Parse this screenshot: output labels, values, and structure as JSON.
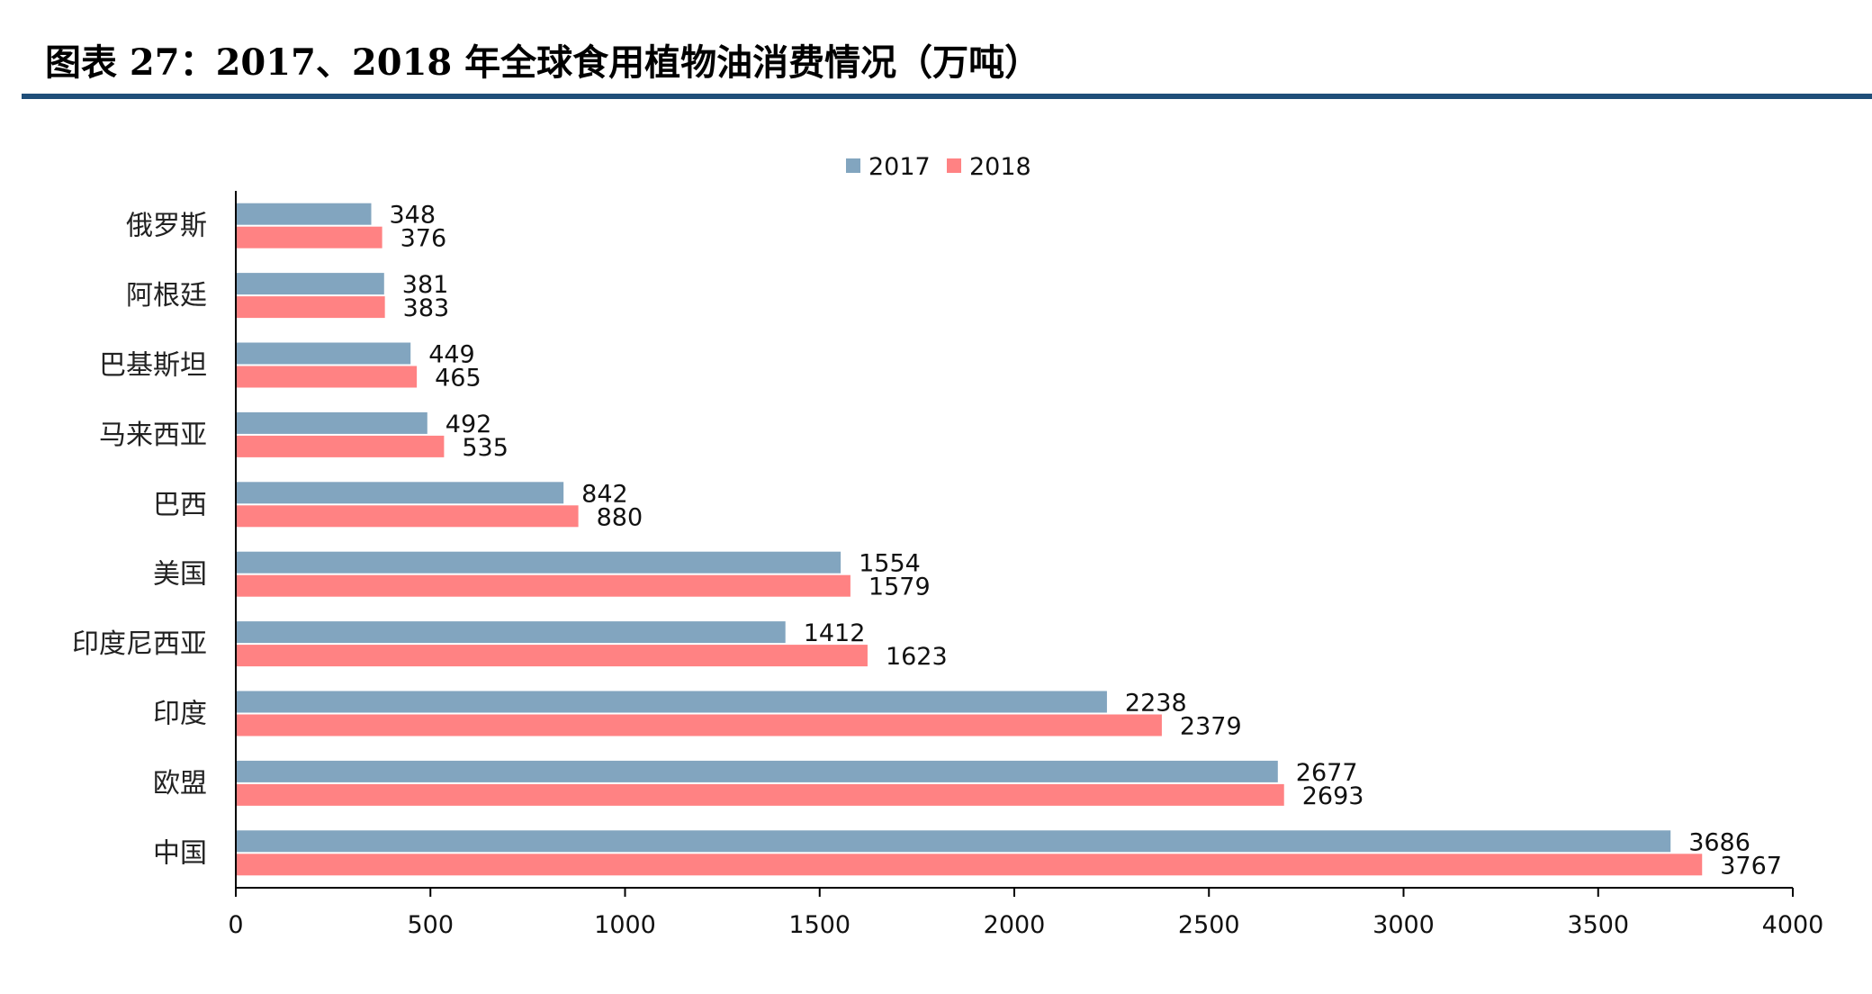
{
  "page": {
    "title": "图表 27：2017、2018 年全球食用植物油消费情况（万吨）"
  },
  "colors": {
    "series_2017": "#82a5bf",
    "series_2018": "#ff8283",
    "title_rule": "#1f4e79"
  },
  "chart_data": {
    "type": "bar",
    "orientation": "horizontal",
    "title": "",
    "xlabel": "",
    "ylabel": "",
    "xlim": [
      0,
      4000
    ],
    "xticks": [
      0,
      500,
      1000,
      1500,
      2000,
      2500,
      3000,
      3500,
      4000
    ],
    "grid": false,
    "legend_position": "top-center",
    "categories": [
      "俄罗斯",
      "阿根廷",
      "巴基斯坦",
      "马来西亚",
      "巴西",
      "美国",
      "印度尼西亚",
      "印度",
      "欧盟",
      "中国"
    ],
    "series": [
      {
        "name": "2017",
        "values": [
          348,
          381,
          449,
          492,
          842,
          1554,
          1412,
          2238,
          2677,
          3686
        ]
      },
      {
        "name": "2018",
        "values": [
          376,
          383,
          465,
          535,
          880,
          1579,
          1623,
          2379,
          2693,
          3767
        ]
      }
    ]
  }
}
